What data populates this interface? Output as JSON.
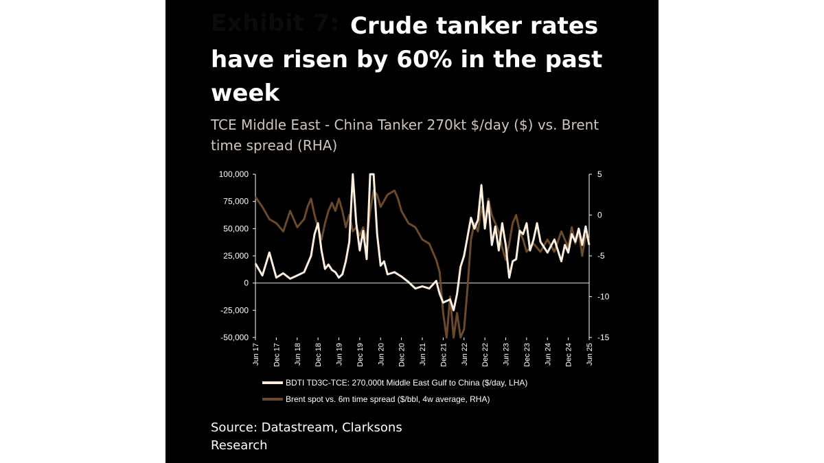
{
  "exhibit": "Exhibit 7:",
  "title": "Crude tanker rates have risen by 60% in the past week",
  "subtitle": "TCE Middle East - China Tanker 270kt $/day ($) vs. Brent time spread (RHA)",
  "source": "Source: Datastream, Clarksons Research",
  "colors": {
    "background": "#000000",
    "tce_line": "#fbeede",
    "spread_line": "#6b4a2b",
    "axis": "#ffffff"
  },
  "chart_data": {
    "type": "line",
    "x_ticks": [
      "Jun 17",
      "Dec 17",
      "Jun 18",
      "Dec 18",
      "Jun 19",
      "Dec 19",
      "Jun 20",
      "Dec 20",
      "Jun 21",
      "Dec 21",
      "Jun 22",
      "Dec 22",
      "Jun 23",
      "Dec 23",
      "Jun 24",
      "Dec 24",
      "Jun 25"
    ],
    "y_left": {
      "ticks": [
        "100,000",
        "75,000",
        "50,000",
        "25,000",
        "0",
        "-25,000",
        "-50,000"
      ],
      "range": [
        -50000,
        100000
      ]
    },
    "y_right": {
      "ticks": [
        "5",
        "0",
        "-5",
        "-10",
        "-15"
      ],
      "range": [
        -15,
        5
      ]
    },
    "grid": false,
    "legend_position": "bottom",
    "series": [
      {
        "name": "BDTI TD3C-TCE: 270,000t Middle East Gulf to China ($/day, LHA)",
        "axis": "left",
        "points": [
          [
            "Jun 17",
            18000
          ],
          [
            "Aug 17",
            7000
          ],
          [
            "Oct 17",
            28000
          ],
          [
            "Dec 17",
            5000
          ],
          [
            "Feb 18",
            9000
          ],
          [
            "Apr 18",
            4000
          ],
          [
            "Jun 18",
            7000
          ],
          [
            "Aug 18",
            10000
          ],
          [
            "Oct 18",
            25000
          ],
          [
            "Nov 18",
            45000
          ],
          [
            "Dec 18",
            55000
          ],
          [
            "Jan 19",
            30000
          ],
          [
            "Feb 19",
            13000
          ],
          [
            "Mar 19",
            17000
          ],
          [
            "Apr 19",
            12000
          ],
          [
            "May 19",
            10000
          ],
          [
            "Jun 19",
            5000
          ],
          [
            "Jul 19",
            8000
          ],
          [
            "Aug 19",
            20000
          ],
          [
            "Sep 19",
            38000
          ],
          [
            "Oct 19",
            100000
          ],
          [
            "Nov 19",
            55000
          ],
          [
            "Dec 19",
            30000
          ],
          [
            "Jan 20",
            48000
          ],
          [
            "Feb 20",
            22000
          ],
          [
            "Mar 20",
            100000
          ],
          [
            "Apr 20",
            100000
          ],
          [
            "May 20",
            45000
          ],
          [
            "Jun 20",
            16000
          ],
          [
            "Jul 20",
            20000
          ],
          [
            "Aug 20",
            8000
          ],
          [
            "Oct 20",
            10000
          ],
          [
            "Dec 20",
            6000
          ],
          [
            "Feb 21",
            1000
          ],
          [
            "Apr 21",
            -5000
          ],
          [
            "Jun 21",
            -3000
          ],
          [
            "Aug 21",
            -5000
          ],
          [
            "Oct 21",
            2000
          ],
          [
            "Nov 21",
            -10000
          ],
          [
            "Dec 21",
            -18000
          ],
          [
            "Feb 22",
            -15000
          ],
          [
            "Mar 22",
            -25000
          ],
          [
            "Apr 22",
            -10000
          ],
          [
            "May 22",
            15000
          ],
          [
            "Jun 22",
            25000
          ],
          [
            "Aug 22",
            60000
          ],
          [
            "Sep 22",
            50000
          ],
          [
            "Oct 22",
            58000
          ],
          [
            "Nov 22",
            90000
          ],
          [
            "Dec 22",
            50000
          ],
          [
            "Jan 23",
            75000
          ],
          [
            "Feb 23",
            35000
          ],
          [
            "Mar 23",
            52000
          ],
          [
            "Apr 23",
            30000
          ],
          [
            "May 23",
            55000
          ],
          [
            "Jun 23",
            35000
          ],
          [
            "Jul 23",
            5000
          ],
          [
            "Aug 23",
            20000
          ],
          [
            "Sep 23",
            22000
          ],
          [
            "Oct 23",
            48000
          ],
          [
            "Nov 23",
            45000
          ],
          [
            "Dec 23",
            55000
          ],
          [
            "Jan 24",
            30000
          ],
          [
            "Feb 24",
            40000
          ],
          [
            "Mar 24",
            55000
          ],
          [
            "Apr 24",
            38000
          ],
          [
            "Jun 24",
            28000
          ],
          [
            "Aug 24",
            40000
          ],
          [
            "Oct 24",
            20000
          ],
          [
            "Nov 24",
            35000
          ],
          [
            "Dec 24",
            28000
          ],
          [
            "Jan 25",
            45000
          ],
          [
            "Feb 25",
            38000
          ],
          [
            "Mar 25",
            50000
          ],
          [
            "Apr 25",
            35000
          ],
          [
            "May 25",
            52000
          ],
          [
            "Jun 25",
            35000
          ]
        ]
      },
      {
        "name": "Brent spot vs. 6m time spread ($/bbl, 4w average, RHA)",
        "axis": "right",
        "points": [
          [
            "Jun 17",
            2.2
          ],
          [
            "Aug 17",
            1.0
          ],
          [
            "Oct 17",
            -0.5
          ],
          [
            "Dec 17",
            -1.0
          ],
          [
            "Feb 18",
            -2.0
          ],
          [
            "Apr 18",
            0.5
          ],
          [
            "Jun 18",
            -1.5
          ],
          [
            "Aug 18",
            -0.5
          ],
          [
            "Sep 18",
            1.0
          ],
          [
            "Oct 18",
            2.0
          ],
          [
            "Nov 18",
            0.0
          ],
          [
            "Dec 18",
            -1.5
          ],
          [
            "Jan 19",
            -3.0
          ],
          [
            "Feb 19",
            -1.0
          ],
          [
            "Mar 19",
            0.5
          ],
          [
            "Apr 19",
            1.5
          ],
          [
            "May 19",
            0.5
          ],
          [
            "Jun 19",
            2.0
          ],
          [
            "Jul 19",
            0.5
          ],
          [
            "Aug 19",
            -1.5
          ],
          [
            "Sep 19",
            0.0
          ],
          [
            "Oct 19",
            -2.0
          ],
          [
            "Nov 19",
            -1.5
          ],
          [
            "Dec 19",
            -2.5
          ],
          [
            "Jan 20",
            -1.5
          ],
          [
            "Feb 20",
            -3.0
          ],
          [
            "Mar 20",
            0.5
          ],
          [
            "Apr 20",
            3.0
          ],
          [
            "May 20",
            2.5
          ],
          [
            "Jun 20",
            1.0
          ],
          [
            "Aug 20",
            2.5
          ],
          [
            "Oct 20",
            3.0
          ],
          [
            "Nov 20",
            2.0
          ],
          [
            "Dec 20",
            0.5
          ],
          [
            "Feb 21",
            -1.0
          ],
          [
            "Apr 21",
            -1.5
          ],
          [
            "Jun 21",
            -3.0
          ],
          [
            "Aug 21",
            -3.5
          ],
          [
            "Oct 21",
            -5.5
          ],
          [
            "Nov 21",
            -7.0
          ],
          [
            "Dec 21",
            -12.0
          ],
          [
            "Jan 22",
            -15.0
          ],
          [
            "Feb 22",
            -10.0
          ],
          [
            "Mar 22",
            -15.0
          ],
          [
            "Apr 22",
            -12.0
          ],
          [
            "May 22",
            -15.0
          ],
          [
            "Jun 22",
            -14.0
          ],
          [
            "Jul 22",
            -9.0
          ],
          [
            "Aug 22",
            -3.0
          ],
          [
            "Sep 22",
            -1.0
          ],
          [
            "Oct 22",
            -2.0
          ],
          [
            "Nov 22",
            1.0
          ],
          [
            "Dec 22",
            -1.0
          ],
          [
            "Jan 23",
            2.0
          ],
          [
            "Feb 23",
            0.0
          ],
          [
            "Mar 23",
            -1.0
          ],
          [
            "Apr 23",
            -2.0
          ],
          [
            "May 23",
            -4.0
          ],
          [
            "Jun 23",
            -5.5
          ],
          [
            "Jul 23",
            -3.5
          ],
          [
            "Aug 23",
            -1.0
          ],
          [
            "Sep 23",
            0.0
          ],
          [
            "Oct 23",
            -2.0
          ],
          [
            "Nov 23",
            -3.0
          ],
          [
            "Dec 23",
            -4.5
          ],
          [
            "Feb 24",
            -3.5
          ],
          [
            "Apr 24",
            -4.5
          ],
          [
            "Jun 24",
            -3.0
          ],
          [
            "Aug 24",
            -4.5
          ],
          [
            "Oct 24",
            -2.0
          ],
          [
            "Dec 24",
            -4.0
          ],
          [
            "Jan 25",
            -1.5
          ],
          [
            "Feb 25",
            -3.5
          ],
          [
            "Mar 25",
            -2.0
          ],
          [
            "Apr 25",
            -5.0
          ],
          [
            "May 25",
            -2.5
          ],
          [
            "Jun 25",
            -3.0
          ]
        ]
      }
    ]
  }
}
